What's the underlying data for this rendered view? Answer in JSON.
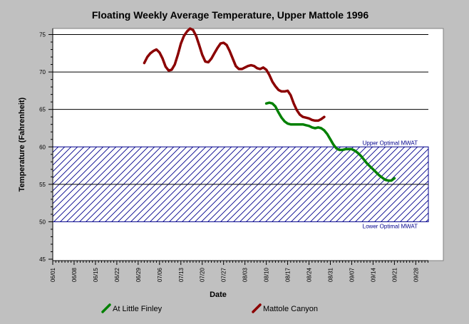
{
  "chart_data": {
    "type": "line",
    "title": "Floating Weekly Average Temperature, Upper Mattole 1996",
    "xlabel": "Date",
    "ylabel": "Temperature (Fahrenheit)",
    "ylim": [
      45,
      76
    ],
    "x_tick_labels": [
      "06/01",
      "06/08",
      "06/15",
      "06/22",
      "06/29",
      "07/06",
      "07/13",
      "07/20",
      "07/27",
      "08/03",
      "08/10",
      "08/17",
      "08/24",
      "08/31",
      "09/07",
      "09/14",
      "09/21",
      "09/28"
    ],
    "y_ticks": [
      45,
      50,
      55,
      60,
      65,
      70,
      75
    ],
    "y_gridlines": [
      55,
      65,
      70,
      75
    ],
    "optimal_band": {
      "low": 50,
      "high": 60,
      "upper_label": "Upper Optimal MWAT",
      "lower_label": "Lower Optimal MWAT",
      "color": "#00008b"
    },
    "legend_position": "bottom",
    "series": [
      {
        "name": "At Little Finley",
        "color": "#008000",
        "points": [
          [
            "1996-08-10",
            65.8
          ],
          [
            "1996-08-11",
            65.9
          ],
          [
            "1996-08-12",
            65.8
          ],
          [
            "1996-08-13",
            65.4
          ],
          [
            "1996-08-14",
            64.6
          ],
          [
            "1996-08-15",
            63.9
          ],
          [
            "1996-08-16",
            63.4
          ],
          [
            "1996-08-17",
            63.1
          ],
          [
            "1996-08-18",
            63.0
          ],
          [
            "1996-08-19",
            63.0
          ],
          [
            "1996-08-20",
            63.0
          ],
          [
            "1996-08-21",
            63.0
          ],
          [
            "1996-08-22",
            63.0
          ],
          [
            "1996-08-23",
            62.9
          ],
          [
            "1996-08-24",
            62.8
          ],
          [
            "1996-08-25",
            62.6
          ],
          [
            "1996-08-26",
            62.5
          ],
          [
            "1996-08-27",
            62.6
          ],
          [
            "1996-08-28",
            62.5
          ],
          [
            "1996-08-29",
            62.2
          ],
          [
            "1996-08-30",
            61.7
          ],
          [
            "1996-08-31",
            61.0
          ],
          [
            "1996-09-01",
            60.3
          ],
          [
            "1996-09-02",
            59.8
          ],
          [
            "1996-09-03",
            59.6
          ],
          [
            "1996-09-04",
            59.6
          ],
          [
            "1996-09-05",
            59.7
          ],
          [
            "1996-09-06",
            59.7
          ],
          [
            "1996-09-07",
            59.7
          ],
          [
            "1996-09-08",
            59.5
          ],
          [
            "1996-09-09",
            59.2
          ],
          [
            "1996-09-10",
            58.8
          ],
          [
            "1996-09-11",
            58.3
          ],
          [
            "1996-09-12",
            57.8
          ],
          [
            "1996-09-13",
            57.4
          ],
          [
            "1996-09-14",
            57.0
          ],
          [
            "1996-09-15",
            56.6
          ],
          [
            "1996-09-16",
            56.2
          ],
          [
            "1996-09-17",
            55.9
          ],
          [
            "1996-09-18",
            55.6
          ],
          [
            "1996-09-19",
            55.5
          ],
          [
            "1996-09-20",
            55.5
          ],
          [
            "1996-09-21",
            55.8
          ]
        ]
      },
      {
        "name": "Mattole Canyon",
        "color": "#8b0000",
        "points": [
          [
            "1996-07-01",
            71.2
          ],
          [
            "1996-07-02",
            72.0
          ],
          [
            "1996-07-03",
            72.5
          ],
          [
            "1996-07-04",
            72.8
          ],
          [
            "1996-07-05",
            73.0
          ],
          [
            "1996-07-06",
            72.6
          ],
          [
            "1996-07-07",
            71.8
          ],
          [
            "1996-07-08",
            70.7
          ],
          [
            "1996-07-09",
            70.2
          ],
          [
            "1996-07-10",
            70.3
          ],
          [
            "1996-07-11",
            71.0
          ],
          [
            "1996-07-12",
            72.3
          ],
          [
            "1996-07-13",
            73.8
          ],
          [
            "1996-07-14",
            74.8
          ],
          [
            "1996-07-15",
            75.4
          ],
          [
            "1996-07-16",
            75.8
          ],
          [
            "1996-07-17",
            75.6
          ],
          [
            "1996-07-18",
            74.8
          ],
          [
            "1996-07-19",
            73.6
          ],
          [
            "1996-07-20",
            72.3
          ],
          [
            "1996-07-21",
            71.4
          ],
          [
            "1996-07-22",
            71.3
          ],
          [
            "1996-07-23",
            71.8
          ],
          [
            "1996-07-24",
            72.5
          ],
          [
            "1996-07-25",
            73.2
          ],
          [
            "1996-07-26",
            73.8
          ],
          [
            "1996-07-27",
            73.9
          ],
          [
            "1996-07-28",
            73.6
          ],
          [
            "1996-07-29",
            72.8
          ],
          [
            "1996-07-30",
            71.8
          ],
          [
            "1996-07-31",
            70.8
          ],
          [
            "1996-08-01",
            70.4
          ],
          [
            "1996-08-02",
            70.4
          ],
          [
            "1996-08-03",
            70.6
          ],
          [
            "1996-08-04",
            70.8
          ],
          [
            "1996-08-05",
            70.9
          ],
          [
            "1996-08-06",
            70.8
          ],
          [
            "1996-08-07",
            70.5
          ],
          [
            "1996-08-08",
            70.4
          ],
          [
            "1996-08-09",
            70.6
          ],
          [
            "1996-08-10",
            70.3
          ],
          [
            "1996-08-11",
            69.6
          ],
          [
            "1996-08-12",
            68.7
          ],
          [
            "1996-08-13",
            68.1
          ],
          [
            "1996-08-14",
            67.6
          ],
          [
            "1996-08-15",
            67.4
          ],
          [
            "1996-08-16",
            67.4
          ],
          [
            "1996-08-17",
            67.5
          ],
          [
            "1996-08-18",
            66.9
          ],
          [
            "1996-08-19",
            65.8
          ],
          [
            "1996-08-20",
            64.9
          ],
          [
            "1996-08-21",
            64.3
          ],
          [
            "1996-08-22",
            64.0
          ],
          [
            "1996-08-23",
            63.9
          ],
          [
            "1996-08-24",
            63.8
          ],
          [
            "1996-08-25",
            63.6
          ],
          [
            "1996-08-26",
            63.5
          ],
          [
            "1996-08-27",
            63.5
          ],
          [
            "1996-08-28",
            63.7
          ],
          [
            "1996-08-29",
            64.0
          ]
        ]
      }
    ]
  }
}
